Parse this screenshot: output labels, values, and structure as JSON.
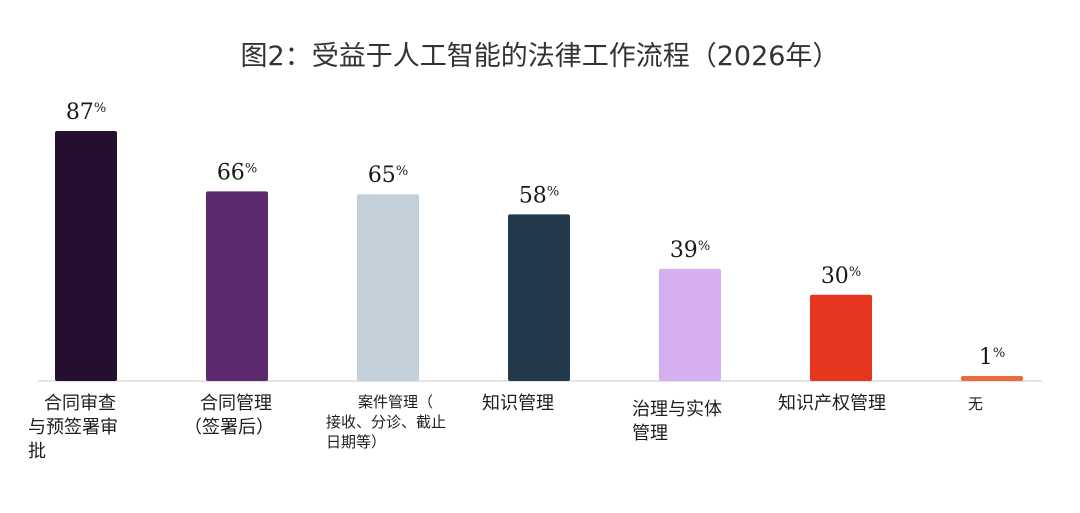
{
  "chart_data": {
    "type": "bar",
    "title": "图2：受益于人工智能的法律工作流程（2026年）",
    "categories": [
      "合同审查与预签署审批",
      "合同管理（签署后）",
      "案件管理（接收、分诊、截止日期等）",
      "知识管理",
      "治理与实体管理",
      "知识产权管理",
      "无"
    ],
    "values": [
      87,
      66,
      65,
      58,
      39,
      30,
      1
    ],
    "value_labels": [
      "87",
      "66",
      "65",
      "58",
      "39",
      "30",
      "1"
    ],
    "unit": "%",
    "colors": [
      "#24102e",
      "#5e2a6e",
      "#c3d0d9",
      "#233a4d",
      "#d6b0ee",
      "#e7361f",
      "#ec6a3c"
    ],
    "ylim": [
      0,
      100
    ],
    "xlabel": "",
    "ylabel": "",
    "grid": false,
    "legend": "none"
  }
}
